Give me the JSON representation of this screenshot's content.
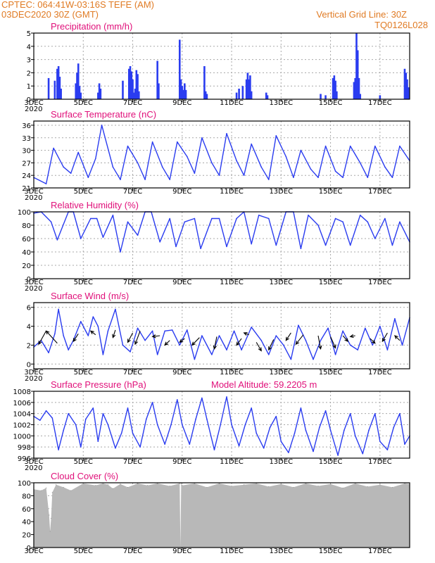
{
  "header": {
    "line1": "CPTEC:   064:41W-03:16S   TEFE (AM)",
    "line2": "03DEC2020 30Z (GMT)",
    "grid_note": "Vertical Grid Line: 30Z",
    "code": "TQ0126L028"
  },
  "colors": {
    "header": "#e07b24",
    "title": "#e0107a",
    "series": "#2a3cf0",
    "cloud": "#b8b8b8"
  },
  "x_axis": {
    "tick_labels": [
      "3DEC",
      "5DEC",
      "7DEC",
      "9DEC",
      "11DEC",
      "13DEC",
      "15DEC",
      "17DEC"
    ],
    "tick_days": [
      0,
      2,
      4,
      6,
      8,
      10,
      12,
      14
    ],
    "range_days": [
      0,
      15.2
    ],
    "year_label": "2020"
  },
  "chart_data": [
    {
      "id": "precip",
      "type": "bar",
      "title": "Precipitation (mm/h)",
      "ylim": [
        0,
        5
      ],
      "yticks": [
        0,
        1,
        2,
        3,
        4,
        5
      ],
      "bars": [
        [
          0.6,
          1.6
        ],
        [
          0.85,
          1.4
        ],
        [
          0.95,
          2.3
        ],
        [
          1.0,
          2.5
        ],
        [
          1.05,
          1.7
        ],
        [
          1.1,
          0.8
        ],
        [
          1.7,
          1.2
        ],
        [
          1.75,
          2.0
        ],
        [
          1.8,
          2.7
        ],
        [
          1.85,
          1.0
        ],
        [
          1.9,
          0.5
        ],
        [
          2.6,
          0.5
        ],
        [
          2.65,
          1.2
        ],
        [
          2.7,
          0.8
        ],
        [
          3.6,
          1.4
        ],
        [
          3.85,
          2.3
        ],
        [
          3.9,
          2.5
        ],
        [
          3.95,
          2.1
        ],
        [
          4.0,
          1.5
        ],
        [
          4.05,
          0.5
        ],
        [
          4.1,
          0.8
        ],
        [
          4.15,
          2.2
        ],
        [
          4.2,
          1.9
        ],
        [
          4.25,
          0.6
        ],
        [
          5.0,
          2.9
        ],
        [
          5.05,
          1.2
        ],
        [
          5.9,
          4.5
        ],
        [
          5.95,
          1.5
        ],
        [
          6.0,
          1.0
        ],
        [
          6.05,
          0.7
        ],
        [
          6.1,
          1.2
        ],
        [
          6.15,
          0.7
        ],
        [
          6.9,
          2.5
        ],
        [
          6.95,
          0.6
        ],
        [
          7.0,
          0.4
        ],
        [
          8.2,
          0.5
        ],
        [
          8.3,
          0.8
        ],
        [
          8.45,
          1.0
        ],
        [
          8.6,
          1.5
        ],
        [
          8.65,
          2.0
        ],
        [
          8.7,
          1.5
        ],
        [
          8.75,
          1.8
        ],
        [
          8.8,
          0.6
        ],
        [
          9.4,
          0.5
        ],
        [
          9.45,
          0.3
        ],
        [
          11.6,
          0.4
        ],
        [
          11.8,
          0.3
        ],
        [
          12.1,
          1.6
        ],
        [
          12.15,
          1.8
        ],
        [
          12.2,
          1.4
        ],
        [
          12.25,
          0.6
        ],
        [
          12.95,
          1.3
        ],
        [
          13.0,
          1.6
        ],
        [
          13.05,
          5.0
        ],
        [
          13.1,
          3.7
        ],
        [
          13.15,
          1.6
        ],
        [
          13.2,
          0.4
        ],
        [
          14.0,
          0.3
        ],
        [
          15.0,
          2.3
        ],
        [
          15.05,
          2.0
        ],
        [
          15.1,
          1.5
        ],
        [
          15.15,
          0.9
        ]
      ]
    },
    {
      "id": "temp",
      "type": "line",
      "title": "Surface Temperature (nC)",
      "ylim": [
        21,
        37
      ],
      "yticks": [
        21,
        24,
        27,
        30,
        33,
        36
      ],
      "x": [
        0,
        0.5,
        0.8,
        1.2,
        1.5,
        1.8,
        2.2,
        2.5,
        2.75,
        3.2,
        3.5,
        3.8,
        4.2,
        4.5,
        4.8,
        5.2,
        5.5,
        5.8,
        6.2,
        6.5,
        6.8,
        7.2,
        7.5,
        7.8,
        8.2,
        8.5,
        8.8,
        9.2,
        9.5,
        9.8,
        10.2,
        10.5,
        10.8,
        11.2,
        11.5,
        11.8,
        12.2,
        12.5,
        12.8,
        13.2,
        13.5,
        13.8,
        14.2,
        14.5,
        14.8,
        15.2
      ],
      "y": [
        23.5,
        22,
        30.5,
        26,
        24.5,
        29.5,
        23.5,
        28,
        36,
        26,
        23,
        31,
        27,
        23,
        32,
        26,
        23,
        32,
        28.5,
        24.5,
        33,
        27,
        24,
        34,
        27.5,
        24,
        31.5,
        26,
        23,
        33.5,
        28.5,
        23.5,
        30,
        25.5,
        23.5,
        31,
        25,
        23.5,
        31,
        27,
        23.5,
        31,
        26,
        23.5,
        31,
        27.5
      ]
    },
    {
      "id": "humidity",
      "type": "line",
      "title": "Relative Humidity (%)",
      "ylim": [
        0,
        100
      ],
      "yticks": [
        0,
        20,
        40,
        60,
        80,
        100
      ],
      "x": [
        0,
        0.3,
        0.7,
        0.95,
        1.4,
        1.6,
        1.9,
        2.3,
        2.55,
        2.8,
        3.2,
        3.5,
        3.8,
        4.2,
        4.5,
        4.75,
        5.1,
        5.5,
        5.75,
        6.1,
        6.5,
        6.75,
        7.2,
        7.5,
        7.8,
        8.2,
        8.5,
        8.8,
        9.1,
        9.5,
        9.8,
        10.2,
        10.5,
        10.8,
        11.1,
        11.5,
        11.8,
        12.2,
        12.5,
        12.8,
        13.2,
        13.5,
        13.8,
        14.2,
        14.5,
        14.8,
        15.2
      ],
      "y": [
        98,
        100,
        85,
        58,
        100,
        100,
        60,
        90,
        90,
        62,
        95,
        40,
        85,
        65,
        100,
        100,
        55,
        90,
        48,
        85,
        90,
        45,
        90,
        90,
        48,
        90,
        100,
        52,
        95,
        90,
        50,
        100,
        100,
        45,
        95,
        80,
        50,
        90,
        85,
        50,
        95,
        85,
        60,
        90,
        50,
        85,
        55
      ]
    },
    {
      "id": "wind",
      "type": "line",
      "title": "Surface Wind (m/s)",
      "ylim": [
        -0.5,
        6.5
      ],
      "yticks": [
        0,
        2,
        4,
        6
      ],
      "x": [
        0,
        0.3,
        0.6,
        0.85,
        1.0,
        1.2,
        1.4,
        1.6,
        1.9,
        2.2,
        2.4,
        2.6,
        2.8,
        3.0,
        3.3,
        3.6,
        3.9,
        4.2,
        4.5,
        4.8,
        5.0,
        5.3,
        5.6,
        5.9,
        6.2,
        6.5,
        6.8,
        7.2,
        7.5,
        7.8,
        8.1,
        8.4,
        8.8,
        9.2,
        9.5,
        9.8,
        10.1,
        10.4,
        10.7,
        11.0,
        11.3,
        11.6,
        11.9,
        12.2,
        12.5,
        12.8,
        13.1,
        13.4,
        13.7,
        14.0,
        14.3,
        14.6,
        14.9,
        15.2
      ],
      "y": [
        1.8,
        2.5,
        1.2,
        3.2,
        5.8,
        3.0,
        1.5,
        2.5,
        4.5,
        3.0,
        5.0,
        4.0,
        1.0,
        3.5,
        5.8,
        2.0,
        1.3,
        3.8,
        2.5,
        3.5,
        1.0,
        3.5,
        3.6,
        2.0,
        3.6,
        0.5,
        3.0,
        1.0,
        3.0,
        1.5,
        3.5,
        1.5,
        3.9,
        2.5,
        1.0,
        3.0,
        2.0,
        0.5,
        4.1,
        2.5,
        0.5,
        2.5,
        3.8,
        1.0,
        3.5,
        2.0,
        1.5,
        3.8,
        2.0,
        4.0,
        1.5,
        4.8,
        2.0,
        4.9
      ],
      "arrows": [
        [
          0.5,
          3.5,
          0.2,
          2.1
        ],
        [
          0.95,
          2.2,
          0.5,
          3.5
        ],
        [
          1.8,
          3.2,
          1.6,
          2.4
        ],
        [
          2.5,
          3.1,
          2.3,
          3.5
        ],
        [
          3.3,
          3.6,
          3.2,
          2.8
        ],
        [
          4.0,
          3.3,
          3.8,
          2.3
        ],
        [
          4.3,
          3.5,
          4.1,
          2.1
        ],
        [
          5.1,
          3.0,
          4.8,
          2.9
        ],
        [
          5.5,
          2.5,
          5.3,
          2.0
        ],
        [
          6.1,
          2.7,
          5.9,
          2.3
        ],
        [
          6.7,
          2.8,
          6.4,
          2.0
        ],
        [
          7.4,
          2.9,
          7.3,
          1.6
        ],
        [
          8.4,
          2.7,
          8.2,
          2.0
        ],
        [
          8.7,
          3.1,
          8.5,
          3.3
        ],
        [
          9.0,
          2.3,
          9.2,
          1.4
        ],
        [
          9.7,
          2.6,
          9.5,
          1.5
        ],
        [
          10.4,
          3.3,
          10.2,
          2.5
        ],
        [
          10.9,
          3.1,
          10.6,
          2.1
        ],
        [
          11.5,
          3.0,
          11.6,
          1.6
        ],
        [
          12.0,
          2.9,
          12.2,
          1.7
        ],
        [
          12.5,
          3.0,
          12.7,
          2.4
        ],
        [
          13.0,
          3.0,
          12.8,
          2.9
        ],
        [
          13.6,
          2.7,
          13.8,
          2.2
        ],
        [
          14.3,
          3.3,
          14.1,
          2.4
        ],
        [
          14.8,
          2.5,
          14.6,
          3.0
        ]
      ]
    },
    {
      "id": "pressure",
      "type": "line",
      "title": "Surface Pressure (hPa)",
      "subtitle": "Model Altitude: 59.2205 m",
      "ylim": [
        996,
        1008
      ],
      "yticks": [
        996,
        998,
        1000,
        1002,
        1004,
        1006,
        1008
      ],
      "x": [
        0,
        0.25,
        0.5,
        0.75,
        1.0,
        1.2,
        1.4,
        1.7,
        1.9,
        2.1,
        2.4,
        2.6,
        2.8,
        3.0,
        3.3,
        3.55,
        3.8,
        4.0,
        4.3,
        4.55,
        4.8,
        5.0,
        5.3,
        5.55,
        5.8,
        6.0,
        6.3,
        6.55,
        6.8,
        7.0,
        7.3,
        7.55,
        7.8,
        8.0,
        8.3,
        8.55,
        8.8,
        9.0,
        9.3,
        9.55,
        9.8,
        10.0,
        10.3,
        10.55,
        10.8,
        11.0,
        11.3,
        11.55,
        11.8,
        12.0,
        12.3,
        12.55,
        12.8,
        13.0,
        13.3,
        13.55,
        13.8,
        14.0,
        14.3,
        14.55,
        14.8,
        15.0,
        15.2
      ],
      "y": [
        1003.5,
        1002.8,
        1004.5,
        1003.2,
        997.5,
        1001,
        1004,
        1002,
        998,
        1003,
        1005,
        999,
        1004,
        1002,
        997.8,
        1000.5,
        1005,
        1000.5,
        998,
        1003,
        1006,
        1002,
        998.5,
        1002,
        1006.5,
        1002,
        998.5,
        1003,
        1006.8,
        1003,
        997.5,
        1002,
        1007,
        1002,
        998.2,
        1002,
        1005,
        1000.5,
        997.8,
        1001.5,
        1003.5,
        999,
        997,
        1000.5,
        1005,
        1001,
        997.2,
        1001.5,
        1004.5,
        1001,
        996.5,
        1001,
        1004,
        1000,
        996.8,
        1001,
        1004,
        999,
        997.5,
        1001.5,
        1004,
        998.5,
        1000
      ]
    },
    {
      "id": "cloud",
      "type": "area",
      "title": "Cloud Cover (%)",
      "ylim": [
        0,
        100
      ],
      "yticks": [
        0,
        20,
        40,
        60,
        80,
        100
      ],
      "x": [
        0,
        0.3,
        0.5,
        0.62,
        0.66,
        0.7,
        0.75,
        0.9,
        1.2,
        1.5,
        2.0,
        2.5,
        2.8,
        3.0,
        3.2,
        3.5,
        3.8,
        4.2,
        4.6,
        5.0,
        5.5,
        5.9,
        5.93,
        5.96,
        6.0,
        6.5,
        7.0,
        7.5,
        8.0,
        8.5,
        9.0,
        9.5,
        10.0,
        10.5,
        11.0,
        11.5,
        12.0,
        12.5,
        13.0,
        13.5,
        14.0,
        14.5,
        15.0,
        15.2
      ],
      "y": [
        90,
        88,
        92,
        50,
        25,
        45,
        85,
        97,
        93,
        88,
        99,
        96,
        99,
        97,
        91,
        98,
        93,
        99,
        96,
        99,
        95,
        99,
        0,
        99,
        96,
        99,
        93,
        99,
        95,
        97,
        99,
        94,
        98,
        93,
        99,
        95,
        98,
        92,
        99,
        94,
        97,
        93,
        99,
        98
      ]
    }
  ]
}
